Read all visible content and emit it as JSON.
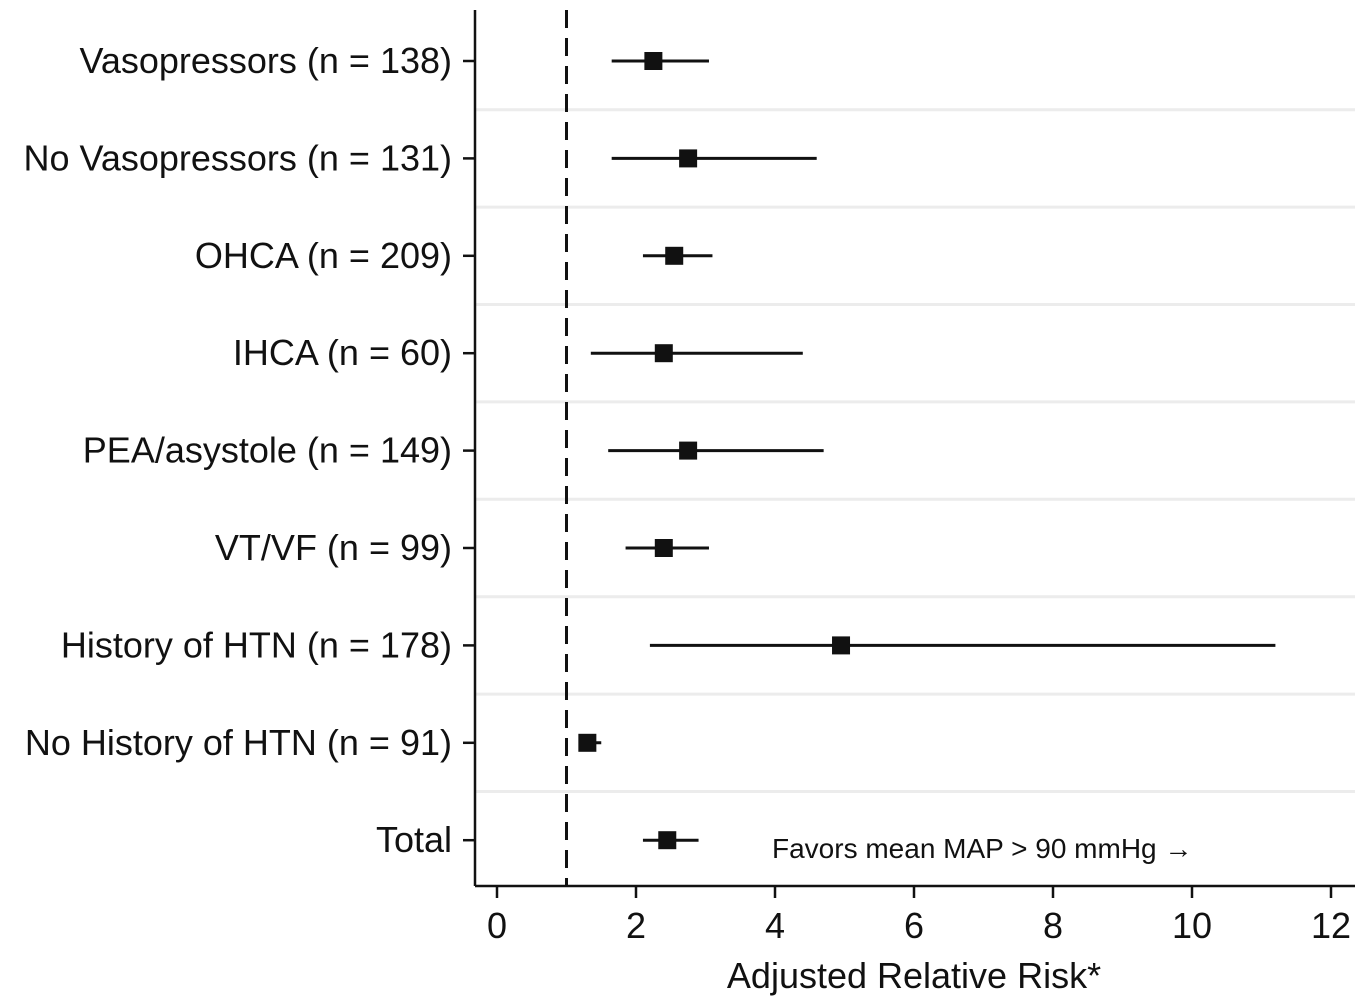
{
  "chart_data": {
    "type": "forest",
    "xlabel": "Adjusted Relative Risk*",
    "xlim": [
      0,
      12
    ],
    "xticks": [
      0,
      2,
      4,
      6,
      8,
      10,
      12
    ],
    "reference_line": 1,
    "grid": "horizontal",
    "annotation": "Favors mean MAP > 90 mmHg →",
    "rows": [
      {
        "label": "Vasopressors (n = 138)",
        "estimate": 2.25,
        "lower": 1.65,
        "upper": 3.05
      },
      {
        "label": "No Vasopressors (n = 131)",
        "estimate": 2.75,
        "lower": 1.65,
        "upper": 4.6
      },
      {
        "label": "OHCA (n = 209)",
        "estimate": 2.55,
        "lower": 2.1,
        "upper": 3.1
      },
      {
        "label": "IHCA (n = 60)",
        "estimate": 2.4,
        "lower": 1.35,
        "upper": 4.4
      },
      {
        "label": "PEA/asystole (n = 149)",
        "estimate": 2.75,
        "lower": 1.6,
        "upper": 4.7
      },
      {
        "label": "VT/VF (n = 99)",
        "estimate": 2.4,
        "lower": 1.85,
        "upper": 3.05
      },
      {
        "label": "History of HTN (n = 178)",
        "estimate": 4.95,
        "lower": 2.2,
        "upper": 11.2
      },
      {
        "label": "No History of HTN (n = 91)",
        "estimate": 1.3,
        "lower": 1.2,
        "upper": 1.5
      },
      {
        "label": "Total",
        "estimate": 2.45,
        "lower": 2.1,
        "upper": 2.9
      }
    ]
  }
}
